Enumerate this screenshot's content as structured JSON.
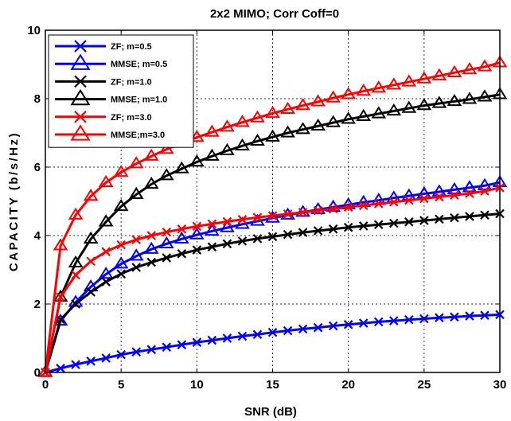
{
  "chart_data": {
    "type": "line",
    "title": "2x2 MIMO; Corr Coff=0",
    "xlabel": "SNR (dB)",
    "ylabel": "CAPACITY (b/s/Hz)",
    "xlim": [
      0,
      30
    ],
    "ylim": [
      0,
      10
    ],
    "xticks": [
      "0",
      "5",
      "10",
      "15",
      "20",
      "25",
      "30"
    ],
    "yticks": [
      "0",
      "2",
      "4",
      "6",
      "8",
      "10"
    ],
    "grid": true,
    "legend_position": "top-left",
    "x": [
      0,
      1,
      2,
      3,
      4,
      5,
      6,
      7,
      8,
      9,
      10,
      11,
      12,
      13,
      14,
      15,
      16,
      17,
      18,
      19,
      20,
      21,
      22,
      23,
      24,
      25,
      26,
      27,
      28,
      29,
      30
    ],
    "series": [
      {
        "name": "ZF; m=0.5",
        "color": "#0000ff",
        "marker": "x",
        "values": [
          0,
          0.12,
          0.23,
          0.33,
          0.42,
          0.52,
          0.6,
          0.67,
          0.74,
          0.81,
          0.88,
          0.94,
          1.0,
          1.06,
          1.11,
          1.17,
          1.22,
          1.27,
          1.31,
          1.36,
          1.4,
          1.44,
          1.48,
          1.51,
          1.54,
          1.57,
          1.6,
          1.62,
          1.65,
          1.67,
          1.69
        ]
      },
      {
        "name": "MMSE; m=0.5",
        "color": "#0000ff",
        "marker": "triangle",
        "values": [
          0,
          1.5,
          2.05,
          2.5,
          2.87,
          3.17,
          3.4,
          3.6,
          3.76,
          3.9,
          4.02,
          4.13,
          4.23,
          4.33,
          4.42,
          4.51,
          4.6,
          4.68,
          4.76,
          4.83,
          4.9,
          4.97,
          5.03,
          5.1,
          5.16,
          5.22,
          5.28,
          5.34,
          5.4,
          5.46,
          5.55
        ]
      },
      {
        "name": "ZF; m=1.0",
        "color": "#000000",
        "marker": "x",
        "values": [
          0,
          1.55,
          2.0,
          2.35,
          2.65,
          2.88,
          3.07,
          3.22,
          3.35,
          3.47,
          3.58,
          3.67,
          3.76,
          3.84,
          3.91,
          3.97,
          4.03,
          4.09,
          4.14,
          4.19,
          4.24,
          4.28,
          4.32,
          4.36,
          4.4,
          4.44,
          4.48,
          4.52,
          4.56,
          4.6,
          4.64
        ]
      },
      {
        "name": "MMSE; m=1.0",
        "color": "#000000",
        "marker": "triangle",
        "values": [
          0,
          2.2,
          3.2,
          3.9,
          4.4,
          4.85,
          5.2,
          5.5,
          5.75,
          5.95,
          6.15,
          6.32,
          6.48,
          6.62,
          6.76,
          6.88,
          7.0,
          7.1,
          7.2,
          7.3,
          7.4,
          7.48,
          7.56,
          7.64,
          7.72,
          7.8,
          7.86,
          7.92,
          7.98,
          8.05,
          8.12
        ]
      },
      {
        "name": "ZF; m=3.0",
        "color": "#ff0000",
        "marker": "x",
        "values": [
          0,
          2.2,
          2.85,
          3.25,
          3.53,
          3.73,
          3.88,
          4.0,
          4.1,
          4.19,
          4.27,
          4.34,
          4.41,
          4.47,
          4.53,
          4.58,
          4.63,
          4.68,
          4.73,
          4.78,
          4.83,
          4.88,
          4.93,
          4.98,
          5.03,
          5.08,
          5.13,
          5.18,
          5.23,
          5.3,
          5.4
        ]
      },
      {
        "name": "MMSE;m=3.0",
        "color": "#ff0000",
        "marker": "triangle",
        "values": [
          0,
          3.7,
          4.6,
          5.15,
          5.55,
          5.85,
          6.1,
          6.32,
          6.52,
          6.7,
          6.87,
          7.02,
          7.17,
          7.31,
          7.44,
          7.57,
          7.69,
          7.8,
          7.91,
          8.02,
          8.12,
          8.22,
          8.31,
          8.4,
          8.49,
          8.58,
          8.67,
          8.76,
          8.85,
          8.93,
          9.05
        ]
      }
    ]
  }
}
